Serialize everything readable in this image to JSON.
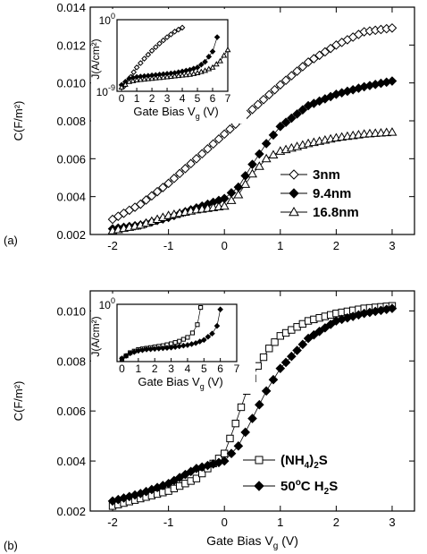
{
  "chart_data": [
    {
      "id": "panel_a",
      "type": "scatter",
      "panel_label": "(a)",
      "xlabel": "",
      "ylabel": "C(F/m²)",
      "xlim": [
        -2.4,
        3.4
      ],
      "ylim": [
        0.002,
        0.014
      ],
      "x_ticks": [
        -2,
        -1,
        0,
        1,
        2,
        3
      ],
      "x_tick_labels": [
        "-2",
        "-1",
        "0",
        "1",
        "2",
        "3"
      ],
      "y_ticks": [
        0.002,
        0.004,
        0.006,
        0.008,
        0.01,
        0.012,
        0.014
      ],
      "y_tick_labels": [
        "0.002",
        "0.004",
        "0.006",
        "0.008",
        "0.010",
        "0.012",
        "0.014"
      ],
      "legend_position": "bottom-right",
      "series": [
        {
          "name": "3nm",
          "marker": "diamond-open",
          "x": [
            -2,
            -1.5,
            -1,
            -0.5,
            0,
            0.5,
            1,
            1.5,
            2,
            2.5,
            3
          ],
          "y": [
            0.0028,
            0.0036,
            0.0047,
            0.006,
            0.0073,
            0.0086,
            0.0099,
            0.0111,
            0.012,
            0.0127,
            0.0129
          ]
        },
        {
          "name": "9.4nm",
          "marker": "diamond-filled",
          "x": [
            -2,
            -1.5,
            -1,
            -0.5,
            0,
            0.25,
            0.5,
            0.75,
            1,
            1.5,
            2,
            2.5,
            3
          ],
          "y": [
            0.0023,
            0.0025,
            0.0029,
            0.0034,
            0.0039,
            0.0045,
            0.0057,
            0.0068,
            0.0077,
            0.0088,
            0.0094,
            0.0098,
            0.0101
          ]
        },
        {
          "name": "16.8nm",
          "marker": "triangle-open",
          "x": [
            -2,
            -1.5,
            -1,
            -0.5,
            0,
            0.25,
            0.5,
            0.75,
            1,
            1.5,
            2,
            2.5,
            3
          ],
          "y": [
            0.0022,
            0.0025,
            0.003,
            0.0033,
            0.0035,
            0.0041,
            0.0052,
            0.006,
            0.0064,
            0.0068,
            0.0071,
            0.0073,
            0.0074
          ]
        }
      ],
      "inset": {
        "xlabel": "Gate Bias V",
        "xlabel_subscript": "g",
        "xlabel_unit": " (V)",
        "ylabel": "J(A/cm²)",
        "xlim": [
          -0.3,
          7
        ],
        "log_ylim": [
          -9,
          0
        ],
        "x_ticks": [
          0,
          1,
          2,
          3,
          4,
          5,
          6,
          7
        ],
        "y_tick_labels": [
          {
            "base": "10",
            "exp": "0",
            "log": 0
          },
          {
            "base": "10",
            "exp": "-9",
            "log": -9
          }
        ],
        "series": [
          {
            "name": "3nm",
            "marker": "diamond-open",
            "x": [
              0.2,
              0.6,
              1,
              1.5,
              2,
              2.5,
              3,
              3.5,
              4
            ],
            "log_y": [
              -8.3,
              -7.2,
              -6,
              -4.9,
              -3.9,
              -3,
              -2.2,
              -1.5,
              -1
            ]
          },
          {
            "name": "9.4nm",
            "marker": "diamond-filled",
            "x": [
              0,
              0.5,
              1,
              1.5,
              2,
              2.5,
              3,
              3.5,
              4,
              4.5,
              5,
              5.5,
              6,
              6.3
            ],
            "log_y": [
              -8.2,
              -7.4,
              -7.2,
              -7.1,
              -7,
              -6.9,
              -6.8,
              -6.7,
              -6.5,
              -6.3,
              -6,
              -5.3,
              -4,
              -2.2
            ]
          },
          {
            "name": "16.8nm",
            "marker": "triangle-open",
            "x": [
              0,
              0.5,
              1,
              1.5,
              2,
              2.5,
              3,
              3.5,
              4,
              4.5,
              5,
              5.5,
              6,
              6.5,
              7
            ],
            "log_y": [
              -8.5,
              -7.8,
              -7.6,
              -7.5,
              -7.4,
              -7.3,
              -7.2,
              -7.1,
              -7,
              -6.9,
              -6.7,
              -6.4,
              -6,
              -5.2,
              -3.8
            ]
          }
        ]
      }
    },
    {
      "id": "panel_b",
      "type": "scatter",
      "panel_label": "(b)",
      "xlabel": "Gate Bias V",
      "xlabel_subscript": "g",
      "xlabel_unit": " (V)",
      "ylabel": "C(F/m²)",
      "xlim": [
        -2.4,
        3.4
      ],
      "ylim": [
        0.002,
        0.0108
      ],
      "x_ticks": [
        -2,
        -1,
        0,
        1,
        2,
        3
      ],
      "x_tick_labels": [
        "-2",
        "-1",
        "0",
        "1",
        "2",
        "3"
      ],
      "y_ticks": [
        0.002,
        0.004,
        0.006,
        0.008,
        0.01
      ],
      "y_tick_labels": [
        "0.002",
        "0.004",
        "0.006",
        "0.008",
        "0.010"
      ],
      "legend_position": "bottom-right",
      "series": [
        {
          "name": "(NH₄)₂S",
          "marker": "square-open",
          "x": [
            -2,
            -1.5,
            -1,
            -0.5,
            0,
            0.2,
            0.4,
            0.6,
            0.8,
            1,
            1.5,
            2,
            2.5,
            3
          ],
          "y": [
            0.0022,
            0.0025,
            0.0028,
            0.0033,
            0.0043,
            0.0055,
            0.0068,
            0.0078,
            0.0085,
            0.009,
            0.0096,
            0.0099,
            0.0101,
            0.0102
          ]
        },
        {
          "name": "50°C H₂S",
          "marker": "diamond-filled",
          "x": [
            -2,
            -1.5,
            -1,
            -0.5,
            0,
            0.25,
            0.5,
            0.75,
            1,
            1.5,
            2,
            2.5,
            3
          ],
          "y": [
            0.0024,
            0.0027,
            0.0031,
            0.0037,
            0.004,
            0.0046,
            0.0057,
            0.0068,
            0.0077,
            0.0089,
            0.0096,
            0.0099,
            0.0101
          ]
        }
      ],
      "legend_labels": [
        {
          "main": "(NH",
          "sub1": "4",
          "mid": ")",
          "sub2": "2",
          "end": "S"
        },
        {
          "main": "50",
          "sup": "o",
          "mid": "C H",
          "sub2": "2",
          "end": "S"
        }
      ],
      "inset": {
        "xlabel": "Gate Bias V",
        "xlabel_subscript": "g",
        "xlabel_unit": " (V)",
        "ylabel": "J(A/cm²)",
        "xlim": [
          -0.3,
          7
        ],
        "log_ylim": [
          -9,
          0
        ],
        "x_ticks": [
          0,
          1,
          2,
          3,
          4,
          5,
          6,
          7
        ],
        "y_tick_labels": [
          {
            "base": "10",
            "exp": "0",
            "log": 0
          }
        ],
        "series": [
          {
            "name": "(NH₄)₂S",
            "marker": "square-open",
            "x": [
              0,
              0.5,
              1,
              1.5,
              2,
              2.5,
              3,
              3.5,
              4,
              4.3,
              4.6,
              4.8
            ],
            "log_y": [
              -8.6,
              -7.6,
              -7.1,
              -6.9,
              -6.7,
              -6.5,
              -6.2,
              -5.8,
              -5.2,
              -4.5,
              -3.2,
              -0.5
            ]
          },
          {
            "name": "50°C H₂S",
            "marker": "diamond-filled",
            "x": [
              0,
              0.5,
              1,
              1.5,
              2,
              2.5,
              3,
              3.5,
              4,
              4.5,
              5,
              5.5,
              5.8,
              6
            ],
            "log_y": [
              -8.5,
              -7.7,
              -7.3,
              -7.1,
              -7,
              -6.9,
              -6.8,
              -6.6,
              -6.4,
              -6.1,
              -5.6,
              -4.6,
              -3.4,
              -0.8
            ]
          }
        ]
      }
    }
  ]
}
